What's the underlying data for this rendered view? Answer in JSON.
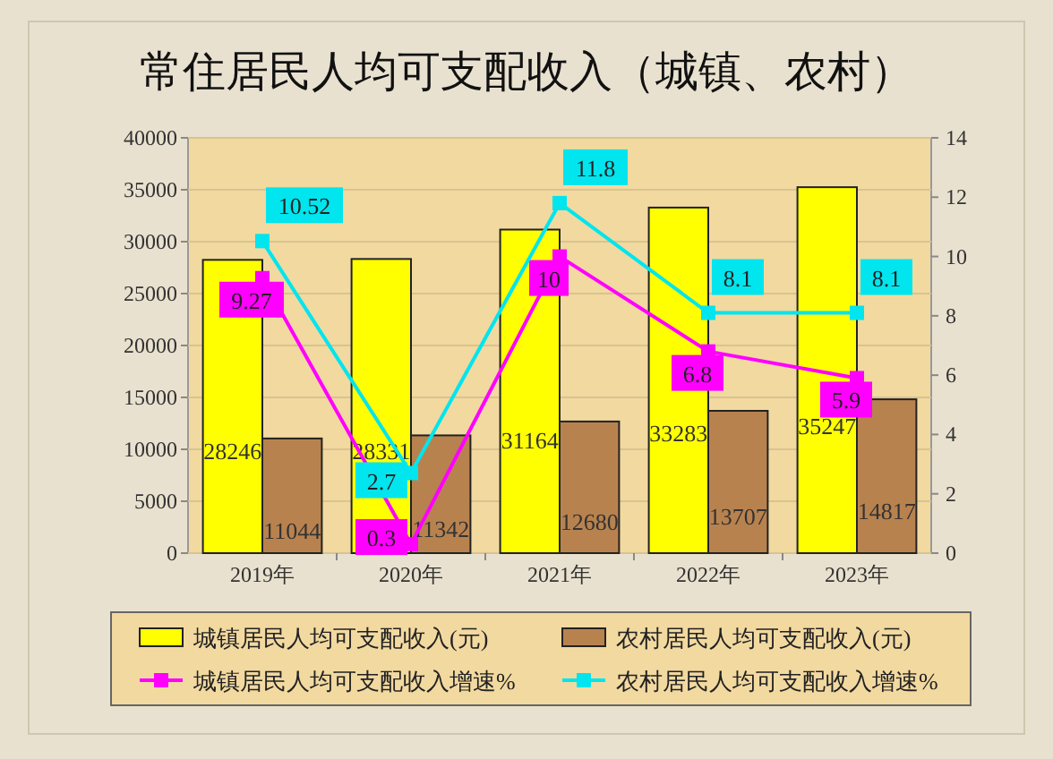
{
  "chart_data": {
    "type": "bar",
    "title": "常住居民人均可支配收入（城镇、农村）",
    "categories": [
      "2019年",
      "2020年",
      "2021年",
      "2022年",
      "2023年"
    ],
    "series": [
      {
        "name": "城镇居民人均可支配收入(元)",
        "color": "#ffff00",
        "values": [
          28246,
          28331,
          31164,
          33283,
          35247
        ]
      },
      {
        "name": "农村居民人均可支配收入(元)",
        "color": "#b8824f",
        "values": [
          11044,
          11342,
          12680,
          13707,
          14817
        ]
      },
      {
        "name": "城镇居民人均可支配收入增速%",
        "type": "line",
        "axis": "y2",
        "color": "#ff00ff",
        "values": [
          9.27,
          0.3,
          10,
          6.8,
          5.9
        ]
      },
      {
        "name": "农村居民人均可支配收入增速%",
        "type": "line",
        "axis": "y2",
        "color": "#00e5ee",
        "values": [
          10.52,
          2.7,
          11.8,
          8.1,
          8.1
        ]
      }
    ],
    "ylim": [
      0,
      40000
    ],
    "yticks": [
      0,
      5000,
      10000,
      15000,
      20000,
      25000,
      30000,
      35000,
      40000
    ],
    "y2lim": [
      0,
      14
    ],
    "y2ticks": [
      0,
      2,
      4,
      6,
      8,
      10,
      12,
      14
    ],
    "data_labels": true,
    "marker": "square",
    "legend": "bottom",
    "grid": "y"
  }
}
